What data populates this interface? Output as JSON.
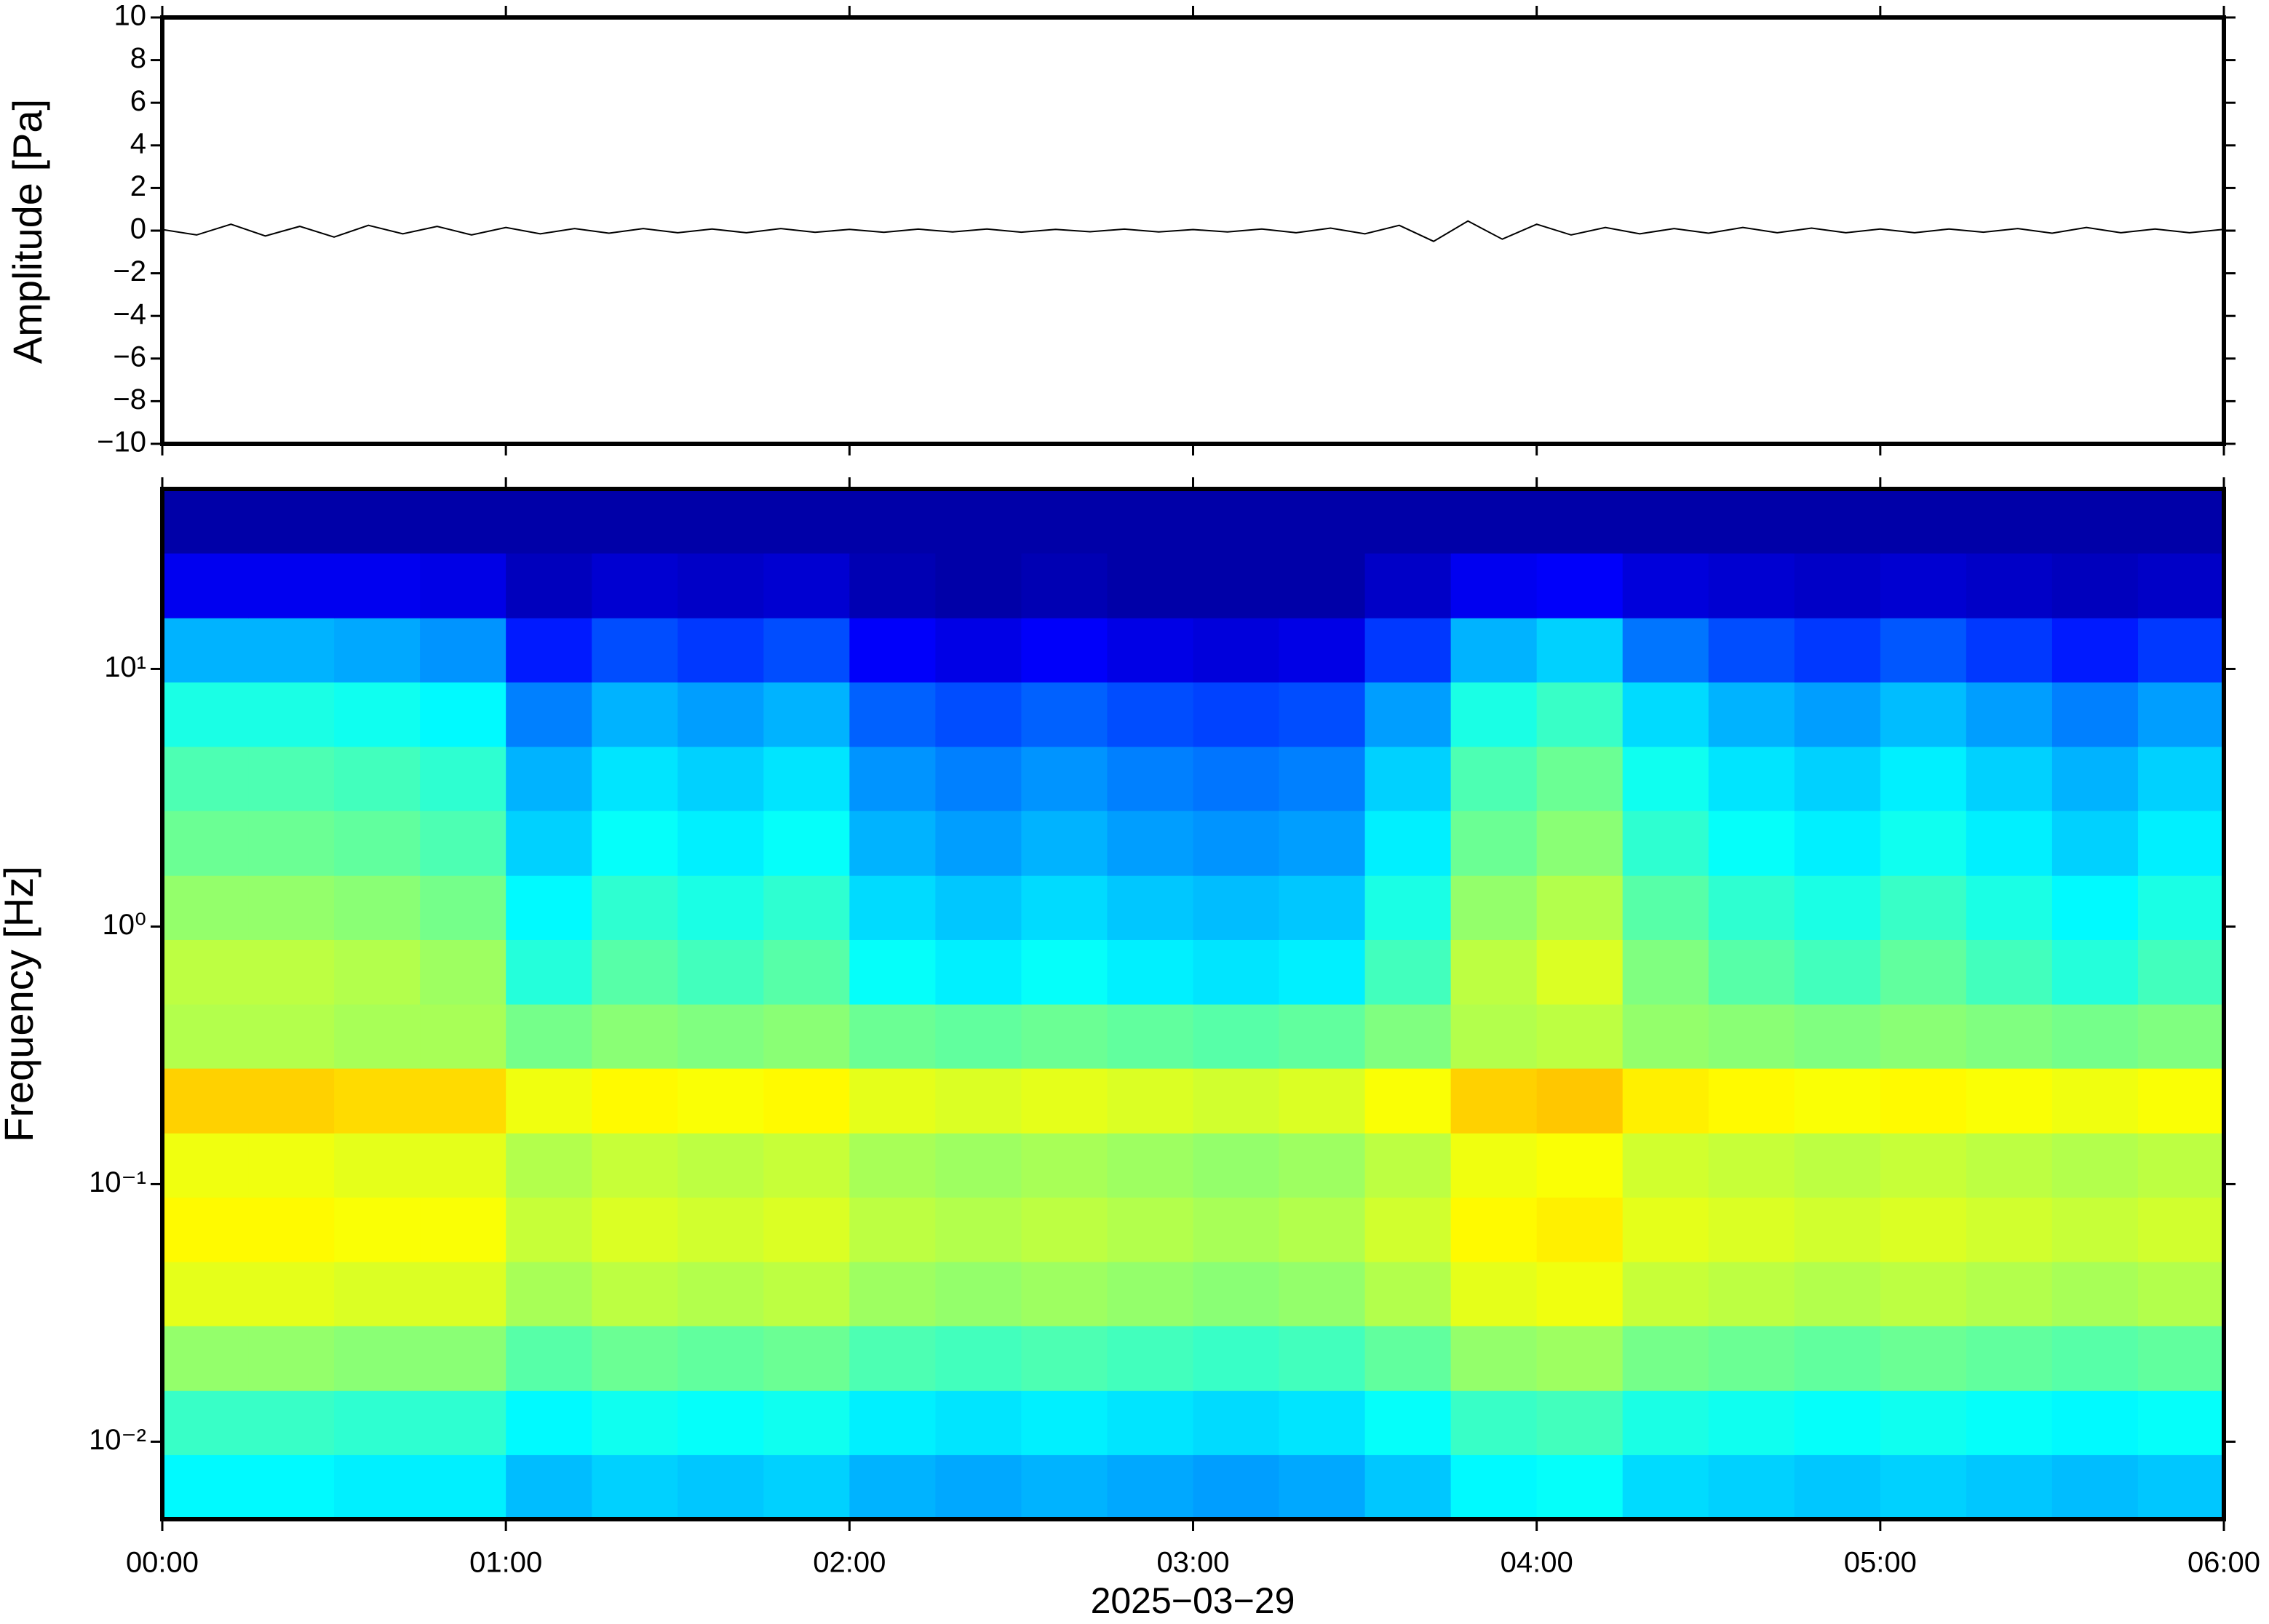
{
  "chart_data": [
    {
      "type": "line",
      "ylabel": "Amplitude [Pa]",
      "color": "#000000",
      "x": [
        0,
        0.1,
        0.2,
        0.3,
        0.4,
        0.5,
        0.6,
        0.7,
        0.8,
        0.9,
        1,
        1.1,
        1.2,
        1.3,
        1.4,
        1.5,
        1.6,
        1.7,
        1.8,
        1.9,
        2,
        2.1,
        2.2,
        2.3,
        2.4,
        2.5,
        2.6,
        2.7,
        2.8,
        2.9,
        3,
        3.1,
        3.2,
        3.3,
        3.4,
        3.5,
        3.6,
        3.7,
        3.8,
        3.9,
        4,
        4.1,
        4.2,
        4.3,
        4.4,
        4.5,
        4.6,
        4.7,
        4.8,
        4.9,
        5,
        5.1,
        5.2,
        5.3,
        5.4,
        5.5,
        5.6,
        5.7,
        5.8,
        5.9,
        6
      ],
      "values": [
        0.05,
        -0.2,
        0.3,
        -0.25,
        0.2,
        -0.3,
        0.25,
        -0.15,
        0.2,
        -0.2,
        0.15,
        -0.15,
        0.1,
        -0.12,
        0.1,
        -0.1,
        0.08,
        -0.1,
        0.1,
        -0.08,
        0.06,
        -0.08,
        0.07,
        -0.06,
        0.08,
        -0.07,
        0.06,
        -0.05,
        0.07,
        -0.06,
        0.05,
        -0.06,
        0.08,
        -0.1,
        0.12,
        -0.15,
        0.25,
        -0.5,
        0.45,
        -0.4,
        0.3,
        -0.2,
        0.15,
        -0.15,
        0.1,
        -0.12,
        0.15,
        -0.1,
        0.12,
        -0.1,
        0.08,
        -0.1,
        0.08,
        -0.07,
        0.1,
        -0.12,
        0.15,
        -0.1,
        0.08,
        -0.1,
        0.06
      ],
      "xlim": [
        0,
        6
      ],
      "xticks": [
        0,
        1,
        2,
        3,
        4,
        5,
        6
      ],
      "ylim": [
        -10,
        10
      ],
      "yticks": [
        {
          "value": -10,
          "label": "−10"
        },
        {
          "value": -8,
          "label": "−8"
        },
        {
          "value": -6,
          "label": "−6"
        },
        {
          "value": -4,
          "label": "−4"
        },
        {
          "value": -2,
          "label": "−2"
        },
        0,
        2,
        4,
        6,
        8,
        10
      ]
    },
    {
      "type": "heatmap",
      "ylabel": "Frequency [Hz]",
      "xlabel": "2025−03−29",
      "colormap": "jet",
      "yscale": "log",
      "xlim": [
        0,
        6
      ],
      "ylim": [
        0.005,
        50
      ],
      "xticks": [
        {
          "value": 0,
          "label": "00:00"
        },
        {
          "value": 1,
          "label": "01:00"
        },
        {
          "value": 2,
          "label": "02:00"
        },
        {
          "value": 3,
          "label": "03:00"
        },
        {
          "value": 4,
          "label": "04:00"
        },
        {
          "value": 5,
          "label": "05:00"
        },
        {
          "value": 6,
          "label": "06:00"
        }
      ],
      "yticks": [
        {
          "value": 0.01,
          "label": "10⁻²"
        },
        {
          "value": 0.1,
          "label": "10⁻¹"
        },
        {
          "value": 1,
          "label": "10⁰"
        },
        {
          "value": 10,
          "label": "10¹"
        }
      ],
      "x_bins": [
        0,
        0.25,
        0.5,
        0.75,
        1,
        1.25,
        1.5,
        1.75,
        2,
        2.25,
        2.5,
        2.75,
        3,
        3.25,
        3.5,
        3.75,
        4,
        4.25,
        4.5,
        4.75,
        5,
        5.25,
        5.5,
        5.75,
        6
      ],
      "y_bins": [
        0.005,
        0.0089,
        0.0158,
        0.0282,
        0.05,
        0.089,
        0.158,
        0.282,
        0.5,
        0.89,
        1.58,
        2.82,
        5,
        8.9,
        15.8,
        28.2,
        50
      ],
      "z": [
        [
          0.37,
          0.37,
          0.36,
          0.36,
          0.31,
          0.33,
          0.32,
          0.33,
          0.3,
          0.29,
          0.3,
          0.29,
          0.28,
          0.29,
          0.32,
          0.37,
          0.38,
          0.34,
          0.33,
          0.32,
          0.33,
          0.32,
          0.31,
          0.32
        ],
        [
          0.43,
          0.43,
          0.42,
          0.42,
          0.37,
          0.39,
          0.38,
          0.39,
          0.36,
          0.35,
          0.36,
          0.35,
          0.34,
          0.35,
          0.38,
          0.43,
          0.44,
          0.4,
          0.39,
          0.38,
          0.39,
          0.38,
          0.37,
          0.38
        ],
        [
          0.52,
          0.52,
          0.51,
          0.51,
          0.46,
          0.48,
          0.47,
          0.48,
          0.45,
          0.44,
          0.45,
          0.44,
          0.43,
          0.44,
          0.47,
          0.52,
          0.53,
          0.49,
          0.48,
          0.47,
          0.48,
          0.47,
          0.46,
          0.47
        ],
        [
          0.6,
          0.6,
          0.59,
          0.59,
          0.54,
          0.56,
          0.55,
          0.56,
          0.53,
          0.52,
          0.53,
          0.52,
          0.51,
          0.52,
          0.55,
          0.6,
          0.61,
          0.57,
          0.56,
          0.55,
          0.56,
          0.55,
          0.54,
          0.55
        ],
        [
          0.63,
          0.63,
          0.62,
          0.62,
          0.57,
          0.59,
          0.58,
          0.59,
          0.56,
          0.55,
          0.56,
          0.55,
          0.54,
          0.55,
          0.58,
          0.63,
          0.64,
          0.6,
          0.59,
          0.58,
          0.59,
          0.58,
          0.57,
          0.58
        ],
        [
          0.61,
          0.61,
          0.6,
          0.6,
          0.55,
          0.57,
          0.56,
          0.57,
          0.54,
          0.53,
          0.54,
          0.53,
          0.52,
          0.53,
          0.56,
          0.61,
          0.62,
          0.58,
          0.57,
          0.56,
          0.57,
          0.56,
          0.55,
          0.56
        ],
        [
          0.67,
          0.67,
          0.66,
          0.66,
          0.61,
          0.63,
          0.62,
          0.63,
          0.6,
          0.59,
          0.6,
          0.59,
          0.58,
          0.59,
          0.62,
          0.67,
          0.68,
          0.64,
          0.63,
          0.62,
          0.63,
          0.62,
          0.61,
          0.62
        ],
        [
          0.55,
          0.55,
          0.54,
          0.54,
          0.49,
          0.51,
          0.5,
          0.51,
          0.48,
          0.47,
          0.48,
          0.47,
          0.46,
          0.47,
          0.5,
          0.55,
          0.56,
          0.52,
          0.51,
          0.5,
          0.51,
          0.5,
          0.49,
          0.5
        ],
        [
          0.56,
          0.56,
          0.55,
          0.53,
          0.41,
          0.46,
          0.44,
          0.46,
          0.38,
          0.36,
          0.38,
          0.36,
          0.35,
          0.36,
          0.44,
          0.56,
          0.59,
          0.5,
          0.46,
          0.44,
          0.47,
          0.44,
          0.41,
          0.44
        ],
        [
          0.52,
          0.52,
          0.51,
          0.49,
          0.37,
          0.42,
          0.4,
          0.42,
          0.34,
          0.32,
          0.34,
          0.32,
          0.31,
          0.32,
          0.4,
          0.52,
          0.55,
          0.46,
          0.42,
          0.4,
          0.43,
          0.4,
          0.37,
          0.4
        ],
        [
          0.48,
          0.48,
          0.47,
          0.45,
          0.33,
          0.38,
          0.36,
          0.38,
          0.3,
          0.28,
          0.3,
          0.28,
          0.27,
          0.28,
          0.36,
          0.48,
          0.51,
          0.42,
          0.38,
          0.36,
          0.39,
          0.36,
          0.33,
          0.36
        ],
        [
          0.45,
          0.45,
          0.44,
          0.42,
          0.3,
          0.35,
          0.33,
          0.35,
          0.27,
          0.25,
          0.27,
          0.25,
          0.24,
          0.25,
          0.33,
          0.45,
          0.48,
          0.39,
          0.35,
          0.33,
          0.36,
          0.33,
          0.3,
          0.33
        ],
        [
          0.4,
          0.4,
          0.39,
          0.37,
          0.25,
          0.3,
          0.28,
          0.3,
          0.22,
          0.2,
          0.22,
          0.2,
          0.19,
          0.2,
          0.28,
          0.4,
          0.43,
          0.34,
          0.3,
          0.28,
          0.31,
          0.28,
          0.25,
          0.28
        ],
        [
          0.3,
          0.3,
          0.29,
          0.27,
          0.15,
          0.2,
          0.18,
          0.2,
          0.12,
          0.1,
          0.12,
          0.1,
          0.09,
          0.1,
          0.18,
          0.3,
          0.33,
          0.24,
          0.2,
          0.18,
          0.21,
          0.18,
          0.15,
          0.18
        ],
        [
          0.11,
          0.11,
          0.11,
          0.1,
          0.06,
          0.08,
          0.07,
          0.08,
          0.05,
          0.04,
          0.05,
          0.04,
          0.04,
          0.04,
          0.07,
          0.11,
          0.12,
          0.09,
          0.08,
          0.07,
          0.08,
          0.07,
          0.06,
          0.07
        ],
        [
          0.04,
          0.04,
          0.04,
          0.04,
          0.04,
          0.04,
          0.04,
          0.04,
          0.04,
          0.04,
          0.04,
          0.04,
          0.04,
          0.04,
          0.04,
          0.04,
          0.04,
          0.04,
          0.04,
          0.04,
          0.04,
          0.04,
          0.04,
          0.04
        ]
      ]
    }
  ]
}
